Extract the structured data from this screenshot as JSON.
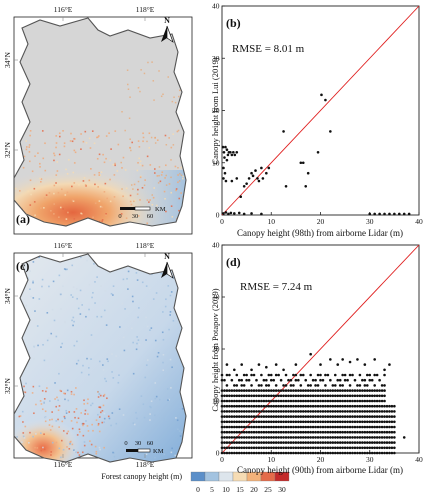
{
  "maps": [
    {
      "panel_label": "(a)",
      "top_lon_labels": [
        "116°E",
        "118°E"
      ],
      "bottom_lon_labels": [],
      "lat_labels": [
        "34°N",
        "32°N"
      ],
      "north_symbol": "N",
      "scale_ticks": [
        "0",
        "30",
        "60"
      ],
      "scale_unit": "KM"
    },
    {
      "panel_label": "(c)",
      "top_lon_labels": [
        "116°E",
        "118°E"
      ],
      "bottom_lon_labels": [
        "116°E",
        "118°E"
      ],
      "lat_labels": [
        "34°N",
        "32°N"
      ],
      "north_symbol": "N",
      "scale_ticks": [
        "0",
        "30",
        "60"
      ],
      "scale_unit": "KM"
    }
  ],
  "legend": {
    "title": "Forest canopy height (m)",
    "ticks": [
      "0",
      "5",
      "10",
      "15",
      "20",
      "25",
      "30"
    ],
    "colors": [
      "#5b8fc9",
      "#a3c3e0",
      "#dde5ec",
      "#f6dcb4",
      "#f2b27a",
      "#e46b4a",
      "#c42a2a"
    ]
  },
  "chart_data": [
    {
      "type": "scatter",
      "panel_label": "(b)",
      "annotation": "RMSE = 8.01 m",
      "xlabel": "Canopy height (98th) from airborne Lidar (m)",
      "ylabel": "Canopy height from Lui (2019)",
      "xlim": [
        0,
        40
      ],
      "ylim": [
        0,
        40
      ],
      "xticks": [
        "0",
        "10",
        "20",
        "30",
        "40"
      ],
      "yticks": [
        "0",
        "10",
        "20",
        "30",
        "40"
      ],
      "reference_line": "1:1",
      "line_color": "#e02020",
      "points": [
        [
          0.2,
          13
        ],
        [
          0.4,
          12
        ],
        [
          0.7,
          13
        ],
        [
          1,
          12.5
        ],
        [
          1.2,
          11.5
        ],
        [
          1.4,
          12
        ],
        [
          1.7,
          12
        ],
        [
          2,
          11.5
        ],
        [
          2.3,
          12
        ],
        [
          2.6,
          11.5
        ],
        [
          3,
          12
        ],
        [
          0.5,
          11
        ],
        [
          1,
          10.5
        ],
        [
          0.3,
          9
        ],
        [
          0.6,
          8
        ],
        [
          0.3,
          7
        ],
        [
          0.8,
          6.5
        ],
        [
          2,
          6.5
        ],
        [
          3,
          7
        ],
        [
          3.8,
          3.5
        ],
        [
          4.5,
          5.5
        ],
        [
          5,
          6
        ],
        [
          5.5,
          7
        ],
        [
          6,
          8
        ],
        [
          6.3,
          7.5
        ],
        [
          6.8,
          8.5
        ],
        [
          7.2,
          7
        ],
        [
          7.5,
          6.5
        ],
        [
          8,
          9
        ],
        [
          8.3,
          7
        ],
        [
          9,
          8
        ],
        [
          9.5,
          9
        ],
        [
          12.5,
          16
        ],
        [
          13,
          5.5
        ],
        [
          16,
          10
        ],
        [
          16.5,
          10
        ],
        [
          17,
          5.5
        ],
        [
          17.5,
          8
        ],
        [
          19.5,
          12
        ],
        [
          20.2,
          23
        ],
        [
          21,
          22
        ],
        [
          22,
          16
        ],
        [
          0.3,
          0.3
        ],
        [
          0.8,
          0.5
        ],
        [
          1.3,
          0.2
        ],
        [
          1.8,
          0.4
        ],
        [
          2.5,
          0.3
        ],
        [
          3.5,
          0.4
        ],
        [
          4.5,
          0.2
        ],
        [
          6,
          0.3
        ],
        [
          8,
          0.2
        ],
        [
          30,
          0.2
        ],
        [
          31,
          0.2
        ],
        [
          32,
          0.2
        ],
        [
          33,
          0.2
        ],
        [
          34,
          0.2
        ],
        [
          35,
          0.2
        ],
        [
          36,
          0.2
        ],
        [
          37,
          0.2
        ],
        [
          38,
          0.2
        ]
      ]
    },
    {
      "type": "scatter",
      "panel_label": "(d)",
      "annotation": "RMSE = 7.24 m",
      "xlabel": "Canopy height (90th) from airborne Lidar (m)",
      "ylabel": "Canopy height from Potapov (2019)",
      "xlim": [
        0,
        40
      ],
      "ylim": [
        0,
        40
      ],
      "xticks": [
        "0",
        "10",
        "20",
        "30",
        "40"
      ],
      "yticks": [
        "0",
        "10",
        "20",
        "30",
        "40"
      ],
      "reference_line": "1:1",
      "line_color": "#e02020",
      "points_description_free": true,
      "band_x_range": [
        0,
        35
      ],
      "band_y_levels": [
        0,
        1,
        2,
        3,
        4,
        5,
        6,
        7,
        8,
        9,
        10,
        11,
        12,
        13,
        14,
        15
      ],
      "extra_points": [
        [
          1,
          17
        ],
        [
          2.5,
          16
        ],
        [
          4,
          17
        ],
        [
          6,
          16
        ],
        [
          7.5,
          17
        ],
        [
          9,
          16.5
        ],
        [
          11,
          17
        ],
        [
          12.5,
          16
        ],
        [
          15,
          17
        ],
        [
          18,
          19
        ],
        [
          20,
          17
        ],
        [
          22,
          18
        ],
        [
          23.5,
          17
        ],
        [
          24.5,
          18
        ],
        [
          26,
          17.5
        ],
        [
          27.5,
          18
        ],
        [
          29,
          17
        ],
        [
          31,
          18
        ],
        [
          33,
          16
        ],
        [
          34,
          17
        ],
        [
          37,
          3
        ]
      ]
    }
  ]
}
